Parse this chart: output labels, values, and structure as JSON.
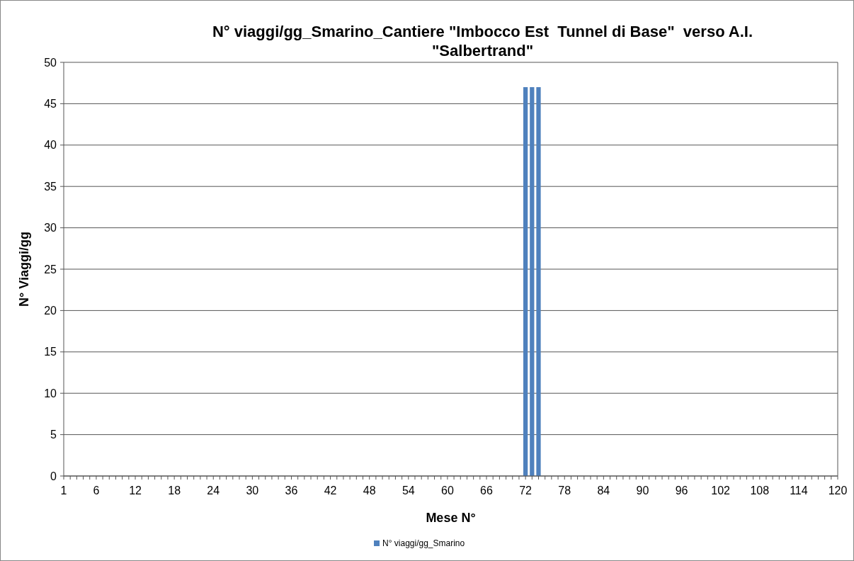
{
  "chart_data": {
    "type": "bar",
    "title": "N° viaggi/gg_Smarino_Cantiere \"Imbocco Est  Tunnel di Base\"  verso A.I. \"Salbertrand\"",
    "xlabel": "Mese N°",
    "ylabel": "N° Viaggi/gg",
    "x": [
      72,
      73,
      74
    ],
    "series": [
      {
        "name": "N° viaggi/gg_Smarino",
        "color": "#4f81bd",
        "values": [
          47,
          47,
          47
        ]
      }
    ],
    "xlim": [
      1,
      120
    ],
    "xticks": [
      1,
      {
        "value": 2,
        "label": null
      },
      {
        "value": 3,
        "label": null
      },
      {
        "value": 4,
        "label": null
      },
      {
        "value": 5,
        "label": null
      },
      6,
      {
        "value": 7,
        "label": null
      },
      {
        "value": 8,
        "label": null
      },
      {
        "value": 9,
        "label": null
      },
      {
        "value": 10,
        "label": null
      },
      {
        "value": 11,
        "label": null
      },
      12,
      {
        "value": 13,
        "label": null
      },
      {
        "value": 14,
        "label": null
      },
      {
        "value": 15,
        "label": null
      },
      {
        "value": 16,
        "label": null
      },
      {
        "value": 17,
        "label": null
      },
      18,
      {
        "value": 19,
        "label": null
      },
      {
        "value": 20,
        "label": null
      },
      {
        "value": 21,
        "label": null
      },
      {
        "value": 22,
        "label": null
      },
      {
        "value": 23,
        "label": null
      },
      24,
      {
        "value": 25,
        "label": null
      },
      {
        "value": 26,
        "label": null
      },
      {
        "value": 27,
        "label": null
      },
      {
        "value": 28,
        "label": null
      },
      {
        "value": 29,
        "label": null
      },
      30,
      {
        "value": 31,
        "label": null
      },
      {
        "value": 32,
        "label": null
      },
      {
        "value": 33,
        "label": null
      },
      {
        "value": 34,
        "label": null
      },
      {
        "value": 35,
        "label": null
      },
      36,
      {
        "value": 37,
        "label": null
      },
      {
        "value": 38,
        "label": null
      },
      {
        "value": 39,
        "label": null
      },
      {
        "value": 40,
        "label": null
      },
      {
        "value": 41,
        "label": null
      },
      42,
      {
        "value": 43,
        "label": null
      },
      {
        "value": 44,
        "label": null
      },
      {
        "value": 45,
        "label": null
      },
      {
        "value": 46,
        "label": null
      },
      {
        "value": 47,
        "label": null
      },
      48,
      {
        "value": 49,
        "label": null
      },
      {
        "value": 50,
        "label": null
      },
      {
        "value": 51,
        "label": null
      },
      {
        "value": 52,
        "label": null
      },
      {
        "value": 53,
        "label": null
      },
      54,
      {
        "value": 55,
        "label": null
      },
      {
        "value": 56,
        "label": null
      },
      {
        "value": 57,
        "label": null
      },
      {
        "value": 58,
        "label": null
      },
      {
        "value": 59,
        "label": null
      },
      60,
      {
        "value": 61,
        "label": null
      },
      {
        "value": 62,
        "label": null
      },
      {
        "value": 63,
        "label": null
      },
      {
        "value": 64,
        "label": null
      },
      {
        "value": 65,
        "label": null
      },
      66,
      {
        "value": 67,
        "label": null
      },
      {
        "value": 68,
        "label": null
      },
      {
        "value": 69,
        "label": null
      },
      {
        "value": 70,
        "label": null
      },
      {
        "value": 71,
        "label": null
      },
      72,
      {
        "value": 73,
        "label": null
      },
      {
        "value": 74,
        "label": null
      },
      {
        "value": 75,
        "label": null
      },
      {
        "value": 76,
        "label": null
      },
      {
        "value": 77,
        "label": null
      },
      78,
      {
        "value": 79,
        "label": null
      },
      {
        "value": 80,
        "label": null
      },
      {
        "value": 81,
        "label": null
      },
      {
        "value": 82,
        "label": null
      },
      {
        "value": 83,
        "label": null
      },
      84,
      {
        "value": 85,
        "label": null
      },
      {
        "value": 86,
        "label": null
      },
      {
        "value": 87,
        "label": null
      },
      {
        "value": 88,
        "label": null
      },
      {
        "value": 89,
        "label": null
      },
      90,
      {
        "value": 91,
        "label": null
      },
      {
        "value": 92,
        "label": null
      },
      {
        "value": 93,
        "label": null
      },
      {
        "value": 94,
        "label": null
      },
      {
        "value": 95,
        "label": null
      },
      96,
      {
        "value": 97,
        "label": null
      },
      {
        "value": 98,
        "label": null
      },
      {
        "value": 99,
        "label": null
      },
      {
        "value": 100,
        "label": null
      },
      {
        "value": 101,
        "label": null
      },
      102,
      {
        "value": 103,
        "label": null
      },
      {
        "value": 104,
        "label": null
      },
      {
        "value": 105,
        "label": null
      },
      {
        "value": 106,
        "label": null
      },
      {
        "value": 107,
        "label": null
      },
      108,
      {
        "value": 109,
        "label": null
      },
      {
        "value": 110,
        "label": null
      },
      {
        "value": 111,
        "label": null
      },
      {
        "value": 112,
        "label": null
      },
      {
        "value": 113,
        "label": null
      },
      114,
      {
        "value": 115,
        "label": null
      },
      {
        "value": 116,
        "label": null
      },
      {
        "value": 117,
        "label": null
      },
      {
        "value": 118,
        "label": null
      },
      {
        "value": 119,
        "label": null
      },
      120
    ],
    "ylim": [
      0,
      50
    ],
    "yticks": [
      0,
      5,
      10,
      15,
      20,
      25,
      30,
      35,
      40,
      45,
      50
    ],
    "grid": "y",
    "legend": "bottom"
  }
}
